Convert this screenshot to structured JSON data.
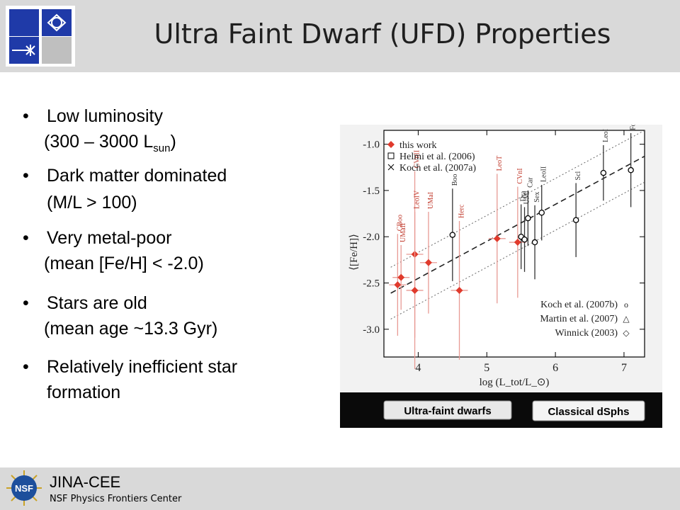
{
  "header": {
    "title": "Ultra Faint Dwarf (UFD) Properties",
    "logo_icon": "jina-logo-icon"
  },
  "bullets": [
    {
      "main": "Low luminosity",
      "sub_pre": "(300 – 3000 L",
      "sub_subscript": "sun",
      "sub_post": ")"
    },
    {
      "main": "Dark matter dominated",
      "sub": "(M/L > 100)"
    },
    {
      "main": "Very metal-poor",
      "sub": "(mean [Fe/H] < -2.0)"
    },
    {
      "main": "Stars are old",
      "sub": "(mean age ~13.3 Gyr)"
    },
    {
      "main": "Relatively inefficient star",
      "sub": "formation"
    }
  ],
  "footer": {
    "org": "JINA-CEE",
    "subtitle": "NSF Physics Frontiers Center",
    "logo_text": "NSF"
  },
  "colors": {
    "header_bg": "#d9d9d9",
    "logo_blue": "#1f3aa8",
    "this_work_red": "#e03a2c",
    "figure_bg": "#0a0a0a"
  },
  "chart_data": {
    "type": "scatter",
    "xlabel": "log (L_tot/L_⊙)",
    "ylabel": "⟨[Fe/H]⟩",
    "xlim": [
      3.5,
      7.3
    ],
    "ylim": [
      -3.3,
      -0.85
    ],
    "x_ticks": [
      "4",
      "5",
      "6",
      "7"
    ],
    "y_ticks": [
      "-1.0",
      "-1.5",
      "-2.0",
      "-2.5",
      "-3.0"
    ],
    "legend_top": [
      {
        "marker": "filled-diamond",
        "label": "this work"
      },
      {
        "marker": "open-square",
        "label": "Helmi et al. (2006)"
      },
      {
        "marker": "cross",
        "label": "Koch et al. (2007a)"
      }
    ],
    "legend_bottom": [
      {
        "label": "Koch et al. (2007b)",
        "marker": "o"
      },
      {
        "label": "Martin et al. (2007)",
        "marker": "△"
      },
      {
        "label": "Winnick (2003)",
        "marker": "◇"
      }
    ],
    "bottom_labels": [
      "Ultra-faint dwarfs",
      "Classical dSphs"
    ],
    "series": [
      {
        "name": "this work",
        "color": "#e03a2c",
        "points": [
          {
            "label": "CBoo",
            "x": 3.7,
            "y": -2.52,
            "yerr": 0.55
          },
          {
            "label": "UMaII",
            "x": 3.75,
            "y": -2.44,
            "yerr": 0.35
          },
          {
            "label": "CVnII",
            "x": 3.95,
            "y": -2.19,
            "yerr": 0.9
          },
          {
            "label": "LeoIV",
            "x": 3.95,
            "y": -2.58,
            "yerr": 0.85
          },
          {
            "label": "UMaI",
            "x": 4.15,
            "y": -2.28,
            "yerr": 0.55
          },
          {
            "label": "Herc",
            "x": 4.6,
            "y": -2.58,
            "yerr": 0.75
          },
          {
            "label": "LeoT",
            "x": 5.15,
            "y": -2.02,
            "yerr": 0.7
          },
          {
            "label": "CVnI",
            "x": 5.45,
            "y": -2.06,
            "yerr": 0.6
          }
        ]
      },
      {
        "name": "other",
        "color": "#000000",
        "points": [
          {
            "label": "Boo",
            "x": 4.5,
            "y": -1.98,
            "yerr": 0.5
          },
          {
            "label": "Dra",
            "x": 5.5,
            "y": -2.0,
            "yerr": 0.35
          },
          {
            "label": "UMi",
            "x": 5.55,
            "y": -2.03,
            "yerr": 0.35
          },
          {
            "label": "Car",
            "x": 5.6,
            "y": -1.8,
            "yerr": 0.3
          },
          {
            "label": "Sex",
            "x": 5.7,
            "y": -2.06,
            "yerr": 0.4
          },
          {
            "label": "LeoII",
            "x": 5.8,
            "y": -1.74,
            "yerr": 0.3
          },
          {
            "label": "Scl",
            "x": 6.3,
            "y": -1.82,
            "yerr": 0.4
          },
          {
            "label": "LeoI",
            "x": 6.7,
            "y": -1.31,
            "yerr": 0.3
          },
          {
            "label": "For",
            "x": 7.1,
            "y": -1.28,
            "yerr": 0.4
          }
        ]
      }
    ]
  }
}
